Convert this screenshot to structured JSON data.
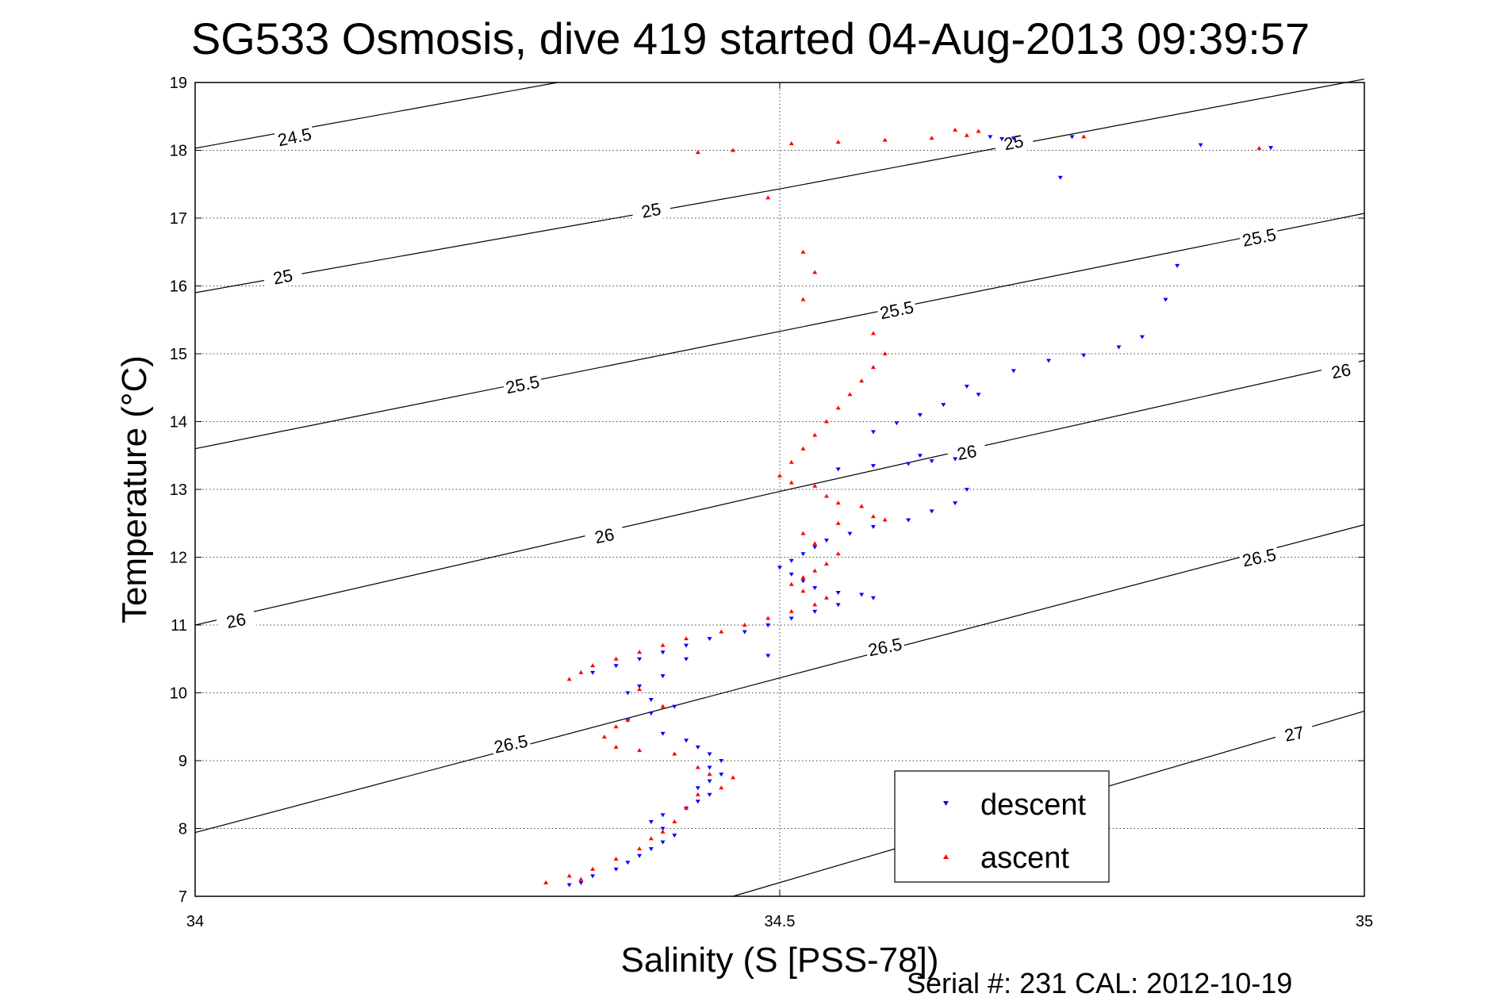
{
  "chart_data": {
    "type": "scatter",
    "title": "SG533 Osmosis, dive 419 started 04-Aug-2013 09:39:57",
    "xlabel": "Salinity (S [PSS-78])",
    "ylabel": "Temperature (°C)",
    "xlim": [
      34,
      35
    ],
    "ylim": [
      7,
      19
    ],
    "xticks": [
      34,
      34.5,
      35
    ],
    "xtick_labels": [
      "34",
      "34.5",
      "35"
    ],
    "yticks": [
      7,
      8,
      9,
      10,
      11,
      12,
      13,
      14,
      15,
      16,
      17,
      18,
      19
    ],
    "ytick_labels": [
      "7",
      "8",
      "9",
      "10",
      "11",
      "12",
      "13",
      "14",
      "15",
      "16",
      "17",
      "18",
      "19"
    ],
    "grid": "dotted",
    "legend_position": "bottom-right",
    "density_contours": [
      {
        "label": "24.5",
        "points": [
          [
            34,
            18.03
          ],
          [
            34.31,
            19
          ]
        ],
        "label_positions": [
          [
            34.085,
            18.2
          ]
        ]
      },
      {
        "label": "25",
        "points": [
          [
            34,
            15.9
          ],
          [
            34.5,
            17.43
          ],
          [
            35,
            19.05
          ]
        ],
        "label_positions": [
          [
            34.075,
            16.14
          ],
          [
            34.39,
            17.12
          ],
          [
            34.7,
            18.12
          ]
        ]
      },
      {
        "label": "25.5",
        "points": [
          [
            34,
            13.6
          ],
          [
            34.5,
            15.33
          ],
          [
            35,
            17.07
          ]
        ],
        "label_positions": [
          [
            34.28,
            14.55
          ],
          [
            34.6,
            15.65
          ],
          [
            34.91,
            16.72
          ]
        ]
      },
      {
        "label": "26",
        "points": [
          [
            34,
            11.0
          ],
          [
            34.5,
            12.97
          ],
          [
            35,
            14.9
          ]
        ],
        "label_positions": [
          [
            34.035,
            11.07
          ],
          [
            34.35,
            12.32
          ],
          [
            34.66,
            13.55
          ],
          [
            34.98,
            14.75
          ]
        ]
      },
      {
        "label": "26.5",
        "points": [
          [
            34,
            7.94
          ],
          [
            34.5,
            10.22
          ],
          [
            35,
            12.48
          ]
        ],
        "label_positions": [
          [
            34.27,
            9.25
          ],
          [
            34.59,
            10.68
          ],
          [
            34.91,
            12.0
          ]
        ]
      },
      {
        "label": "27",
        "points": [
          [
            34.46,
            7
          ],
          [
            35,
            9.73
          ]
        ],
        "label_positions": [
          [
            34.94,
            9.4
          ]
        ]
      }
    ],
    "series": [
      {
        "name": "descent",
        "color": "#0000ff",
        "marker": "triangle-down",
        "points": [
          [
            34.7,
            18.18
          ],
          [
            34.68,
            18.2
          ],
          [
            34.69,
            18.17
          ],
          [
            34.75,
            18.2
          ],
          [
            34.86,
            18.08
          ],
          [
            34.92,
            18.04
          ],
          [
            34.74,
            17.6
          ],
          [
            34.84,
            16.3
          ],
          [
            34.83,
            15.8
          ],
          [
            34.81,
            15.25
          ],
          [
            34.79,
            15.1
          ],
          [
            34.76,
            14.98
          ],
          [
            34.73,
            14.9
          ],
          [
            34.7,
            14.75
          ],
          [
            34.66,
            14.52
          ],
          [
            34.67,
            14.4
          ],
          [
            34.64,
            14.25
          ],
          [
            34.62,
            14.1
          ],
          [
            34.6,
            13.98
          ],
          [
            34.58,
            13.85
          ],
          [
            34.62,
            13.5
          ],
          [
            34.65,
            13.45
          ],
          [
            34.63,
            13.42
          ],
          [
            34.61,
            13.38
          ],
          [
            34.58,
            13.35
          ],
          [
            34.55,
            13.3
          ],
          [
            34.66,
            13.0
          ],
          [
            34.65,
            12.8
          ],
          [
            34.63,
            12.68
          ],
          [
            34.61,
            12.55
          ],
          [
            34.58,
            12.45
          ],
          [
            34.56,
            12.35
          ],
          [
            34.54,
            12.25
          ],
          [
            34.53,
            12.15
          ],
          [
            34.52,
            12.05
          ],
          [
            34.51,
            11.95
          ],
          [
            34.5,
            11.85
          ],
          [
            34.51,
            11.75
          ],
          [
            34.52,
            11.65
          ],
          [
            34.53,
            11.55
          ],
          [
            34.55,
            11.48
          ],
          [
            34.57,
            11.45
          ],
          [
            34.58,
            11.4
          ],
          [
            34.55,
            11.3
          ],
          [
            34.53,
            11.2
          ],
          [
            34.51,
            11.1
          ],
          [
            34.49,
            11.0
          ],
          [
            34.47,
            10.9
          ],
          [
            34.44,
            10.8
          ],
          [
            34.42,
            10.7
          ],
          [
            34.4,
            10.6
          ],
          [
            34.38,
            10.5
          ],
          [
            34.36,
            10.4
          ],
          [
            34.34,
            10.3
          ],
          [
            34.42,
            10.5
          ],
          [
            34.49,
            10.55
          ],
          [
            34.4,
            10.25
          ],
          [
            34.38,
            10.1
          ],
          [
            34.37,
            10.0
          ],
          [
            34.39,
            9.9
          ],
          [
            34.41,
            9.8
          ],
          [
            34.39,
            9.7
          ],
          [
            34.37,
            9.6
          ],
          [
            34.4,
            9.4
          ],
          [
            34.42,
            9.3
          ],
          [
            34.43,
            9.2
          ],
          [
            34.44,
            9.1
          ],
          [
            34.45,
            9.0
          ],
          [
            34.44,
            8.9
          ],
          [
            34.45,
            8.8
          ],
          [
            34.44,
            8.7
          ],
          [
            34.43,
            8.6
          ],
          [
            34.44,
            8.5
          ],
          [
            34.43,
            8.4
          ],
          [
            34.42,
            8.3
          ],
          [
            34.4,
            8.2
          ],
          [
            34.39,
            8.1
          ],
          [
            34.4,
            8.0
          ],
          [
            34.41,
            7.9
          ],
          [
            34.4,
            7.8
          ],
          [
            34.39,
            7.7
          ],
          [
            34.38,
            7.6
          ],
          [
            34.37,
            7.5
          ],
          [
            34.36,
            7.4
          ],
          [
            34.34,
            7.3
          ],
          [
            34.33,
            7.2
          ],
          [
            34.32,
            7.17
          ]
        ]
      },
      {
        "name": "ascent",
        "color": "#ff0000",
        "marker": "triangle-up",
        "points": [
          [
            34.43,
            17.97
          ],
          [
            34.46,
            18.0
          ],
          [
            34.51,
            18.1
          ],
          [
            34.55,
            18.12
          ],
          [
            34.59,
            18.15
          ],
          [
            34.63,
            18.18
          ],
          [
            34.65,
            18.3
          ],
          [
            34.66,
            18.22
          ],
          [
            34.67,
            18.28
          ],
          [
            34.76,
            18.2
          ],
          [
            34.91,
            18.03
          ],
          [
            34.49,
            17.3
          ],
          [
            34.52,
            16.5
          ],
          [
            34.53,
            16.2
          ],
          [
            34.52,
            15.8
          ],
          [
            34.58,
            15.3
          ],
          [
            34.59,
            15.0
          ],
          [
            34.58,
            14.8
          ],
          [
            34.57,
            14.6
          ],
          [
            34.56,
            14.4
          ],
          [
            34.55,
            14.2
          ],
          [
            34.54,
            14.0
          ],
          [
            34.53,
            13.8
          ],
          [
            34.52,
            13.6
          ],
          [
            34.51,
            13.4
          ],
          [
            34.5,
            13.2
          ],
          [
            34.51,
            13.1
          ],
          [
            34.53,
            13.05
          ],
          [
            34.54,
            12.9
          ],
          [
            34.55,
            12.8
          ],
          [
            34.57,
            12.75
          ],
          [
            34.58,
            12.6
          ],
          [
            34.59,
            12.55
          ],
          [
            34.55,
            12.5
          ],
          [
            34.52,
            12.35
          ],
          [
            34.53,
            12.2
          ],
          [
            34.55,
            12.05
          ],
          [
            34.54,
            11.9
          ],
          [
            34.53,
            11.8
          ],
          [
            34.52,
            11.7
          ],
          [
            34.51,
            11.6
          ],
          [
            34.52,
            11.5
          ],
          [
            34.54,
            11.4
          ],
          [
            34.53,
            11.3
          ],
          [
            34.51,
            11.2
          ],
          [
            34.49,
            11.1
          ],
          [
            34.47,
            11.0
          ],
          [
            34.45,
            10.9
          ],
          [
            34.42,
            10.8
          ],
          [
            34.4,
            10.7
          ],
          [
            34.38,
            10.6
          ],
          [
            34.36,
            10.5
          ],
          [
            34.34,
            10.4
          ],
          [
            34.33,
            10.3
          ],
          [
            34.32,
            10.2
          ],
          [
            34.38,
            10.05
          ],
          [
            34.4,
            9.8
          ],
          [
            34.37,
            9.6
          ],
          [
            34.36,
            9.5
          ],
          [
            34.35,
            9.35
          ],
          [
            34.36,
            9.2
          ],
          [
            34.38,
            9.15
          ],
          [
            34.41,
            9.1
          ],
          [
            34.43,
            8.9
          ],
          [
            34.44,
            8.8
          ],
          [
            34.46,
            8.75
          ],
          [
            34.45,
            8.6
          ],
          [
            34.43,
            8.5
          ],
          [
            34.42,
            8.3
          ],
          [
            34.41,
            8.1
          ],
          [
            34.4,
            7.95
          ],
          [
            34.39,
            7.85
          ],
          [
            34.38,
            7.7
          ],
          [
            34.36,
            7.55
          ],
          [
            34.34,
            7.4
          ],
          [
            34.32,
            7.3
          ],
          [
            34.3,
            7.2
          ],
          [
            34.33,
            7.25
          ]
        ]
      }
    ]
  },
  "footer": {
    "serial": "Serial #: 231  CAL: 2012-10-19"
  }
}
